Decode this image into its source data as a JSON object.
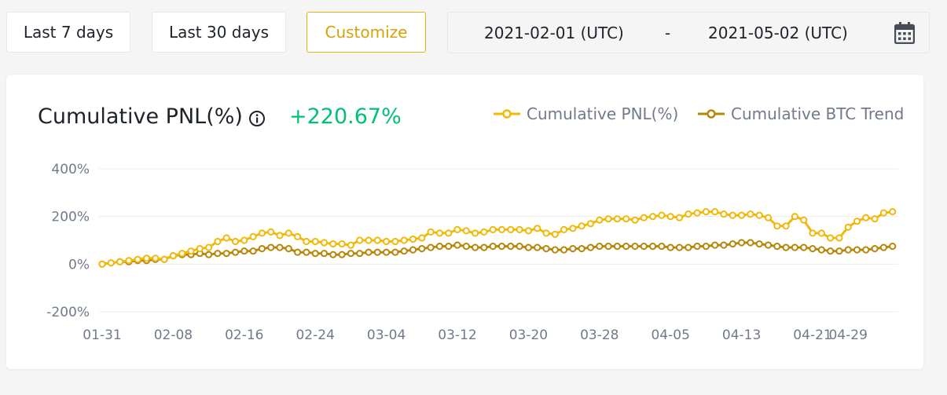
{
  "toolbar": {
    "btn_7": "Last 7 days",
    "btn_30": "Last 30 days",
    "btn_custom": "Customize",
    "date_start": "2021-02-01 (UTC)",
    "date_sep": "-",
    "date_end": "2021-05-02 (UTC)"
  },
  "card": {
    "title": "Cumulative PNL(%)",
    "value": "+220.67%"
  },
  "colors": {
    "pnl": "#f0b90b",
    "btc": "#b8860b",
    "positive": "#02c076",
    "accent": "#e0b30b"
  },
  "chart_data": {
    "type": "line",
    "title": "Cumulative PNL(%)",
    "y_ticks": [
      "400%",
      "200%",
      "0%",
      "-200%"
    ],
    "y_tick_values": [
      400,
      200,
      0,
      -200
    ],
    "ylim": [
      -200,
      400
    ],
    "x_tick_labels": [
      "01-31",
      "02-08",
      "02-16",
      "02-24",
      "03-04",
      "03-12",
      "03-20",
      "03-28",
      "04-05",
      "04-13",
      "04-21",
      "04-29"
    ],
    "x_tick_index": [
      0,
      8,
      16,
      24,
      32,
      40,
      48,
      56,
      64,
      72,
      80,
      84
    ],
    "legend_position": "top-right",
    "grid": "horizontal",
    "series": [
      {
        "name": "Cumulative PNL(%)",
        "values": [
          0,
          5,
          10,
          15,
          20,
          25,
          25,
          20,
          35,
          45,
          55,
          65,
          70,
          95,
          110,
          95,
          100,
          115,
          130,
          135,
          120,
          130,
          115,
          95,
          95,
          90,
          85,
          85,
          80,
          100,
          100,
          100,
          95,
          95,
          100,
          105,
          110,
          135,
          130,
          130,
          145,
          140,
          130,
          135,
          145,
          145,
          145,
          145,
          140,
          150,
          130,
          125,
          145,
          150,
          160,
          170,
          185,
          190,
          190,
          190,
          185,
          195,
          200,
          205,
          200,
          195,
          210,
          215,
          220,
          220,
          210,
          205,
          205,
          210,
          205,
          195,
          160,
          160,
          200,
          185,
          130,
          130,
          110,
          110,
          155,
          180,
          195,
          190,
          215,
          220
        ]
      },
      {
        "name": "Cumulative BTC Trend",
        "values": [
          0,
          5,
          10,
          10,
          15,
          15,
          20,
          20,
          35,
          40,
          40,
          45,
          40,
          45,
          45,
          50,
          55,
          55,
          65,
          70,
          70,
          65,
          50,
          50,
          45,
          45,
          40,
          40,
          45,
          45,
          50,
          50,
          50,
          50,
          55,
          60,
          65,
          70,
          75,
          75,
          80,
          75,
          70,
          70,
          75,
          75,
          75,
          75,
          70,
          70,
          65,
          60,
          60,
          65,
          65,
          70,
          75,
          75,
          75,
          75,
          75,
          75,
          75,
          75,
          70,
          70,
          70,
          75,
          75,
          80,
          80,
          85,
          90,
          90,
          85,
          80,
          75,
          70,
          70,
          70,
          65,
          60,
          55,
          55,
          60,
          60,
          60,
          65,
          70,
          75
        ]
      }
    ]
  }
}
